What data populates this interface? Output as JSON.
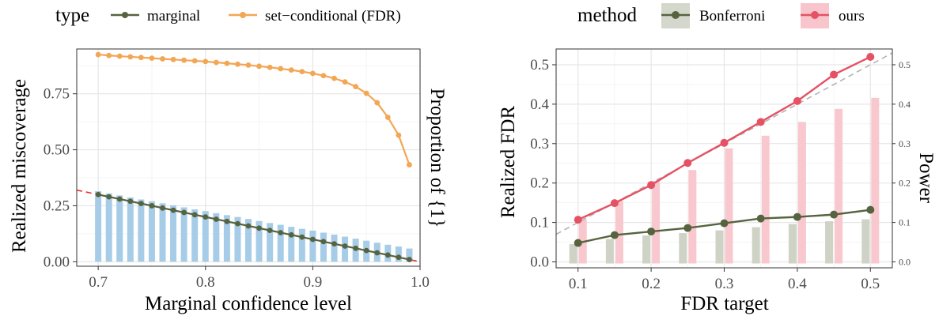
{
  "chart_data": [
    {
      "type": "line",
      "legend": {
        "title": "type",
        "entries": [
          {
            "name": "marginal",
            "color": "#56633f"
          },
          {
            "name": "set−conditional (FDR)",
            "color": "#f3a654"
          }
        ]
      },
      "xlabel": "Marginal confidence level",
      "ylabel": "Realized miscoverage",
      "ylabel_right": "Proportion of {1}",
      "ylabel_right_color": "#3b8fc8",
      "xlim": [
        0.68,
        1.0
      ],
      "ylim": [
        -0.02,
        0.95
      ],
      "x_ticks": [
        "0.7",
        "0.8",
        "0.9",
        "1.0"
      ],
      "x_tick_values": [
        0.7,
        0.8,
        0.9,
        1.0
      ],
      "y_ticks": [
        "0.00",
        "0.25",
        "0.50",
        "0.75"
      ],
      "y_tick_values": [
        0.0,
        0.25,
        0.5,
        0.75
      ],
      "grid": true,
      "legend_position": "top",
      "x": [
        0.7,
        0.71,
        0.72,
        0.73,
        0.74,
        0.75,
        0.76,
        0.77,
        0.78,
        0.79,
        0.8,
        0.81,
        0.82,
        0.83,
        0.84,
        0.85,
        0.86,
        0.87,
        0.88,
        0.89,
        0.9,
        0.91,
        0.92,
        0.93,
        0.94,
        0.95,
        0.96,
        0.97,
        0.98,
        0.99
      ],
      "series": [
        {
          "name": "marginal",
          "color": "#56633f",
          "values": [
            0.3,
            0.29,
            0.28,
            0.27,
            0.26,
            0.25,
            0.24,
            0.23,
            0.22,
            0.21,
            0.2,
            0.19,
            0.18,
            0.17,
            0.16,
            0.15,
            0.14,
            0.13,
            0.12,
            0.11,
            0.1,
            0.09,
            0.08,
            0.07,
            0.06,
            0.05,
            0.04,
            0.03,
            0.02,
            0.01
          ]
        },
        {
          "name": "set−conditional (FDR)",
          "color": "#f3a654",
          "values": [
            0.925,
            0.921,
            0.918,
            0.915,
            0.912,
            0.909,
            0.906,
            0.903,
            0.9,
            0.897,
            0.894,
            0.89,
            0.886,
            0.882,
            0.878,
            0.873,
            0.868,
            0.862,
            0.856,
            0.849,
            0.841,
            0.831,
            0.819,
            0.803,
            0.782,
            0.752,
            0.71,
            0.645,
            0.565,
            0.433
          ]
        }
      ],
      "bars": {
        "name": "Proportion of {1}",
        "color": "#a6cce8",
        "values": [
          0.315,
          0.305,
          0.296,
          0.287,
          0.278,
          0.27,
          0.261,
          0.252,
          0.243,
          0.234,
          0.226,
          0.217,
          0.208,
          0.2,
          0.191,
          0.182,
          0.173,
          0.165,
          0.156,
          0.147,
          0.139,
          0.13,
          0.121,
          0.112,
          0.103,
          0.094,
          0.085,
          0.076,
          0.068,
          0.059
        ]
      },
      "reference_line": {
        "style": "dashed",
        "color": "#e8302a",
        "x": [
          0.68,
          1.0
        ],
        "y": [
          0.32,
          0.0
        ]
      }
    },
    {
      "type": "line",
      "legend": {
        "title": "method",
        "entries": [
          {
            "name": "Bonferroni",
            "color": "#56633f",
            "fill": "#d4d7cc"
          },
          {
            "name": "ours",
            "color": "#e45264",
            "fill": "#f7c5cb"
          }
        ]
      },
      "xlabel": "FDR target",
      "ylabel": "Realized FDR",
      "ylabel_right": "Power",
      "xlim": [
        0.07,
        0.53
      ],
      "ylim": [
        -0.015,
        0.54
      ],
      "x_ticks": [
        "0.1",
        "0.2",
        "0.3",
        "0.4",
        "0.5"
      ],
      "x_tick_values": [
        0.1,
        0.2,
        0.3,
        0.4,
        0.5
      ],
      "y_ticks": [
        "0.0",
        "0.1",
        "0.2",
        "0.3",
        "0.4",
        "0.5"
      ],
      "y_tick_values": [
        0.0,
        0.1,
        0.2,
        0.3,
        0.4,
        0.5
      ],
      "y_ticks_right": [
        "0.0",
        "0.1",
        "0.2",
        "0.3",
        "0.4",
        "0.5"
      ],
      "grid": true,
      "legend_position": "top",
      "x": [
        0.1,
        0.15,
        0.2,
        0.25,
        0.3,
        0.35,
        0.4,
        0.45,
        0.5
      ],
      "series": [
        {
          "name": "Bonferroni",
          "color": "#56633f",
          "values": [
            0.048,
            0.068,
            0.077,
            0.086,
            0.098,
            0.11,
            0.114,
            0.12,
            0.132
          ]
        },
        {
          "name": "ours",
          "color": "#e45264",
          "values": [
            0.107,
            0.149,
            0.195,
            0.251,
            0.302,
            0.355,
            0.408,
            0.475,
            0.52
          ]
        }
      ],
      "bars": [
        {
          "name": "Bonferroni",
          "color": "#cfd3c5",
          "values": [
            0.045,
            0.058,
            0.067,
            0.073,
            0.08,
            0.088,
            0.096,
            0.103,
            0.108
          ]
        },
        {
          "name": "ours",
          "color": "#f8c8ce",
          "values": [
            0.108,
            0.155,
            0.205,
            0.233,
            0.288,
            0.32,
            0.355,
            0.388,
            0.416
          ]
        }
      ],
      "reference_line": {
        "style": "dashed",
        "color": "#b3b3b3",
        "x": [
          0.07,
          0.53
        ],
        "y": [
          0.07,
          0.53
        ]
      }
    }
  ]
}
